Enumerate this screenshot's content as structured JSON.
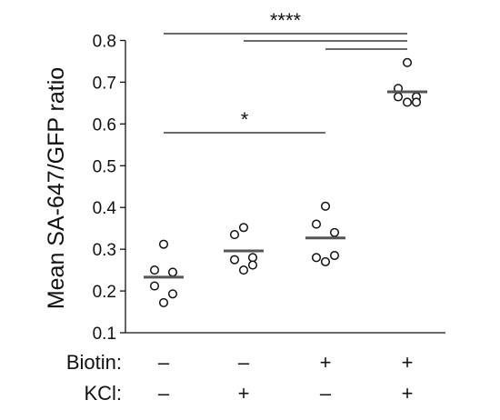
{
  "chart_data": {
    "type": "scatter",
    "ylabel": "Mean SA-647/GFP ratio",
    "ylim": [
      0.1,
      0.8
    ],
    "yticks": [
      0.1,
      0.2,
      0.3,
      0.4,
      0.5,
      0.6,
      0.7,
      0.8
    ],
    "grid": false,
    "conditions": [
      {
        "label": "Biotin:",
        "values": [
          "–",
          "–",
          "+",
          "+"
        ]
      },
      {
        "label": "KCl:",
        "values": [
          "–",
          "+",
          "–",
          "+"
        ]
      }
    ],
    "groups": [
      {
        "mean": 0.233,
        "points": [
          0.312,
          0.25,
          0.245,
          0.212,
          0.193,
          0.172
        ]
      },
      {
        "mean": 0.296,
        "points": [
          0.352,
          0.335,
          0.28,
          0.275,
          0.262,
          0.25
        ]
      },
      {
        "mean": 0.327,
        "points": [
          0.403,
          0.36,
          0.34,
          0.28,
          0.285,
          0.27
        ]
      },
      {
        "mean": 0.677,
        "points": [
          0.747,
          0.685,
          0.665,
          0.665,
          0.652,
          0.652
        ]
      }
    ],
    "significance": [
      {
        "from": 0,
        "to": 3,
        "label": "****"
      },
      {
        "from": 1,
        "to": 3,
        "label": ""
      },
      {
        "from": 2,
        "to": 3,
        "label": ""
      },
      {
        "from": 0,
        "to": 2,
        "label": "*"
      }
    ],
    "colors": {
      "points": "#ffffff",
      "point_stroke": "#111111",
      "mean_bar": "#555555",
      "axis": "#111111"
    }
  }
}
